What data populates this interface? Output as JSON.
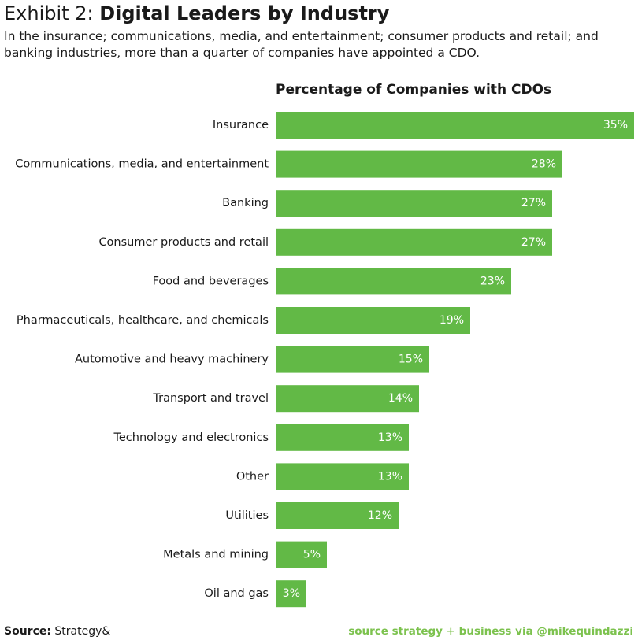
{
  "header": {
    "prefix": "Exhibit 2:",
    "title": "Digital Leaders by Industry",
    "subtitle": "In the insurance; communications, media, and entertainment; consumer products and retail; and banking industries, more than a quarter of companies have appointed a CDO."
  },
  "colors": {
    "bar": "#62b946",
    "bar_label": "#ffffff",
    "credit": "#7cc24e"
  },
  "chart_data": {
    "type": "bar",
    "orientation": "horizontal",
    "title": "Percentage of Companies with CDOs",
    "categories": [
      "Insurance",
      "Communications, media, and entertainment",
      "Banking",
      "Consumer products and retail",
      "Food and beverages",
      "Pharmaceuticals, healthcare, and chemicals",
      "Automotive and heavy machinery",
      "Transport and travel",
      "Technology and electronics",
      "Other",
      "Utilities",
      "Metals and mining",
      "Oil and gas"
    ],
    "values": [
      35,
      28,
      27,
      27,
      23,
      19,
      15,
      14,
      13,
      13,
      12,
      5,
      3
    ],
    "labels": [
      "35%",
      "28%",
      "27%",
      "27%",
      "23%",
      "19%",
      "15%",
      "14%",
      "13%",
      "13%",
      "12%",
      "5%",
      "3%"
    ],
    "unit": "%",
    "xlim": [
      0,
      35
    ],
    "xlabel": "",
    "ylabel": "",
    "grid": false
  },
  "footer": {
    "source_label": "Source:",
    "source_value": "Strategy&",
    "credit": "source strategy + business via @mikequindazzi"
  }
}
